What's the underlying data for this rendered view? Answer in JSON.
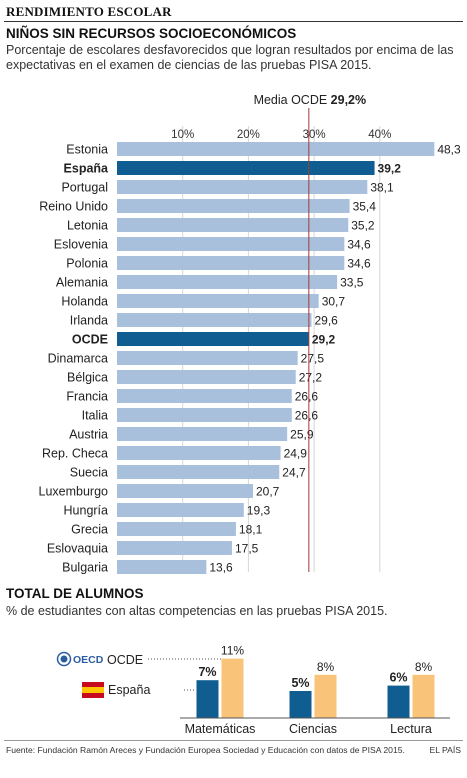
{
  "header": {
    "kicker": "RENDIMIENTO ESCOLAR",
    "title": "NIÑOS SIN RECURSOS SOCIOECONÓMICOS",
    "subtitle": "Porcentaje de escolares desfavorecidos que logran resultados por encima de las expectativas en el examen de ciencias de las pruebas PISA 2015."
  },
  "section2": {
    "title": "TOTAL DE ALUMNOS",
    "subtitle": "% de estudiantes con altas competencias en las pruebas PISA 2015."
  },
  "footer": {
    "source": "Fuente: Fundación Ramón Areces y Fundación Europea Sociedad y Educación con datos de PISA 2015.",
    "brand": "EL PAÍS"
  },
  "colors": {
    "bar_light": "#a9c0dc",
    "bar_highlight": "#0f5d91",
    "bar_oecd": "#f9c479",
    "reference_line": "#a23a3a"
  },
  "chart_data": [
    {
      "type": "bar",
      "orientation": "horizontal",
      "categories": [
        "Estonia",
        "España",
        "Portugal",
        "Reino Unido",
        "Letonia",
        "Eslovenia",
        "Polonia",
        "Alemania",
        "Holanda",
        "Irlanda",
        "OCDE",
        "Dinamarca",
        "Bélgica",
        "Francia",
        "Italia",
        "Austria",
        "Rep. Checa",
        "Suecia",
        "Luxemburgo",
        "Hungría",
        "Grecia",
        "Eslovaquia",
        "Bulgaria"
      ],
      "values": [
        48.3,
        39.2,
        38.1,
        35.4,
        35.2,
        34.6,
        34.6,
        33.5,
        30.7,
        29.6,
        29.2,
        27.5,
        27.2,
        26.6,
        26.6,
        25.9,
        24.9,
        24.7,
        20.7,
        19.3,
        18.1,
        17.5,
        13.6
      ],
      "value_labels": [
        "48,3",
        "39,2",
        "38,1",
        "35,4",
        "35,2",
        "34,6",
        "34,6",
        "33,5",
        "30,7",
        "29,6",
        "29,2",
        "27,5",
        "27,2",
        "26,6",
        "26,6",
        "25,9",
        "24,9",
        "24,7",
        "20,7",
        "19,3",
        "18,1",
        "17,5",
        "13,6"
      ],
      "highlighted": [
        "España",
        "OCDE"
      ],
      "xticks": [
        10,
        20,
        30,
        40
      ],
      "xtick_labels": [
        "10%",
        "20%",
        "30%",
        "40%"
      ],
      "xlim": [
        0,
        50
      ],
      "reference": {
        "value": 29.2,
        "label": "Media OCDE",
        "value_label": "29,2%"
      }
    },
    {
      "type": "bar",
      "categories": [
        "Matemáticas",
        "Ciencias",
        "Lectura"
      ],
      "series": [
        {
          "name": "España",
          "values": [
            7,
            5,
            6
          ],
          "labels": [
            "7%",
            "5%",
            "6%"
          ]
        },
        {
          "name": "OCDE",
          "values": [
            11,
            8,
            8
          ],
          "labels": [
            "11%",
            "8%",
            "8%"
          ]
        }
      ],
      "legend": {
        "oecd_text": "OECD",
        "oecd_label": "OCDE",
        "spain_label": "España"
      },
      "ylim": [
        0,
        12
      ]
    }
  ]
}
